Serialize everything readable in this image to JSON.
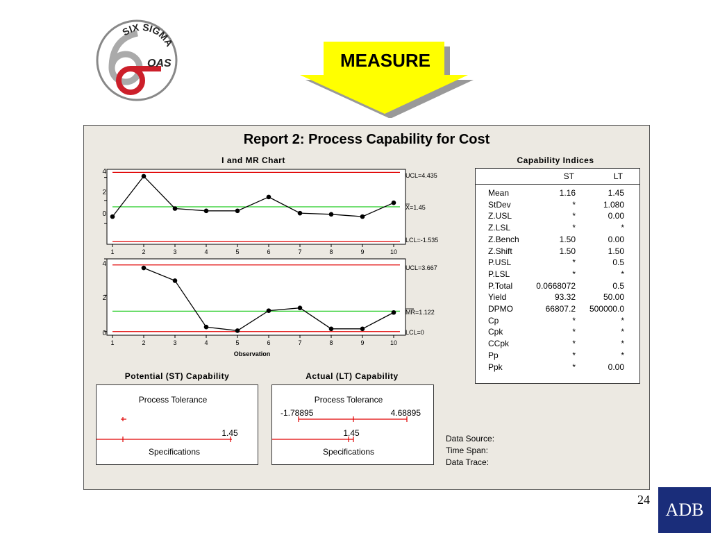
{
  "logo": {
    "line1": "SIX SIGMA",
    "line2": "OAS",
    "icon": "six-sigma-logo"
  },
  "banner": {
    "label": "MEASURE",
    "icon": "down-arrow-icon",
    "color": "#ffff00"
  },
  "report": {
    "title": "Report 2: Process Capability for Cost"
  },
  "imr": {
    "title": "I and MR Chart",
    "xlabel": "Observation",
    "i_ucl_label": "UCL=4.435",
    "i_center_label": "X=1.45",
    "i_lcl_label": "LCL=-1.535",
    "mr_ucl_label": "UCL=3.667",
    "mr_center_label": "MR=1.122",
    "mr_lcl_label": "LCL=0"
  },
  "chart_data": [
    {
      "type": "line",
      "title": "I and MR Chart",
      "x": [
        1,
        2,
        3,
        4,
        5,
        6,
        7,
        8,
        9,
        10
      ],
      "series": [
        {
          "values": [
            0.6,
            4.1,
            1.3,
            1.1,
            1.1,
            2.3,
            0.9,
            0.8,
            0.6,
            1.8
          ]
        }
      ],
      "limits": {
        "ucl": 4.435,
        "center": 1.45,
        "lcl": -1.535
      },
      "ylim": [
        -1.8,
        4.7
      ],
      "yticks": [
        0,
        2,
        4
      ],
      "xticks": [
        1,
        2,
        3,
        4,
        5,
        6,
        7,
        8,
        9,
        10
      ],
      "colors": {
        "limits": "#e00000",
        "center": "#22cc22",
        "series": "#000000"
      }
    },
    {
      "type": "line",
      "xlabel": "Observation",
      "x": [
        1,
        2,
        3,
        4,
        5,
        6,
        7,
        8,
        9,
        10
      ],
      "series": [
        {
          "values": [
            null,
            3.5,
            2.8,
            0.25,
            0.05,
            1.15,
            1.3,
            0.15,
            0.15,
            1.05
          ]
        }
      ],
      "limits": {
        "ucl": 3.667,
        "center": 1.122,
        "lcl": 0
      },
      "ylim": [
        -0.2,
        4.0
      ],
      "yticks": [
        0,
        2,
        4
      ],
      "xticks": [
        1,
        2,
        3,
        4,
        5,
        6,
        7,
        8,
        9,
        10
      ],
      "colors": {
        "limits": "#e00000",
        "center": "#22cc22",
        "series": "#000000"
      }
    }
  ],
  "capability": {
    "title": "Capability Indices",
    "col_st": "ST",
    "col_lt": "LT",
    "rows": [
      {
        "label": "Mean",
        "st": "1.16",
        "lt": "1.45"
      },
      {
        "label": "StDev",
        "st": "*",
        "lt": "1.080"
      },
      {
        "label": "Z.USL",
        "st": "*",
        "lt": "0.00"
      },
      {
        "label": "Z.LSL",
        "st": "*",
        "lt": "*"
      },
      {
        "label": "Z.Bench",
        "st": "1.50",
        "lt": "0.00"
      },
      {
        "label": "Z.Shift",
        "st": "1.50",
        "lt": "1.50"
      },
      {
        "label": "P.USL",
        "st": "*",
        "lt": "0.5"
      },
      {
        "label": "P.LSL",
        "st": "*",
        "lt": "*"
      },
      {
        "label": "P.Total",
        "st": "0.0668072",
        "lt": "0.5"
      },
      {
        "label": "Yield",
        "st": "93.32",
        "lt": "50.00"
      },
      {
        "label": "DPMO",
        "st": "66807.2",
        "lt": "500000.0"
      },
      {
        "label": "Cp",
        "st": "*",
        "lt": "*"
      },
      {
        "label": "Cpk",
        "st": "*",
        "lt": "*"
      },
      {
        "label": "CCpk",
        "st": "*",
        "lt": "*"
      },
      {
        "label": "Pp",
        "st": "*",
        "lt": "*"
      },
      {
        "label": "Ppk",
        "st": "*",
        "lt": "0.00"
      }
    ]
  },
  "potential": {
    "title": "Potential (ST) Capability",
    "tolerance_label": "Process Tolerance",
    "spec_value": "1.45",
    "spec_label": "Specifications"
  },
  "actual": {
    "title": "Actual (LT) Capability",
    "tolerance_label": "Process Tolerance",
    "tol_low": "-1.78895",
    "tol_high": "4.68895",
    "spec_value": "1.45",
    "spec_label": "Specifications"
  },
  "meta": {
    "data_source": "Data Source:",
    "time_span": "Time Span:",
    "data_trace": "Data Trace:"
  },
  "page_number": "24",
  "footer_logo": "ADB"
}
